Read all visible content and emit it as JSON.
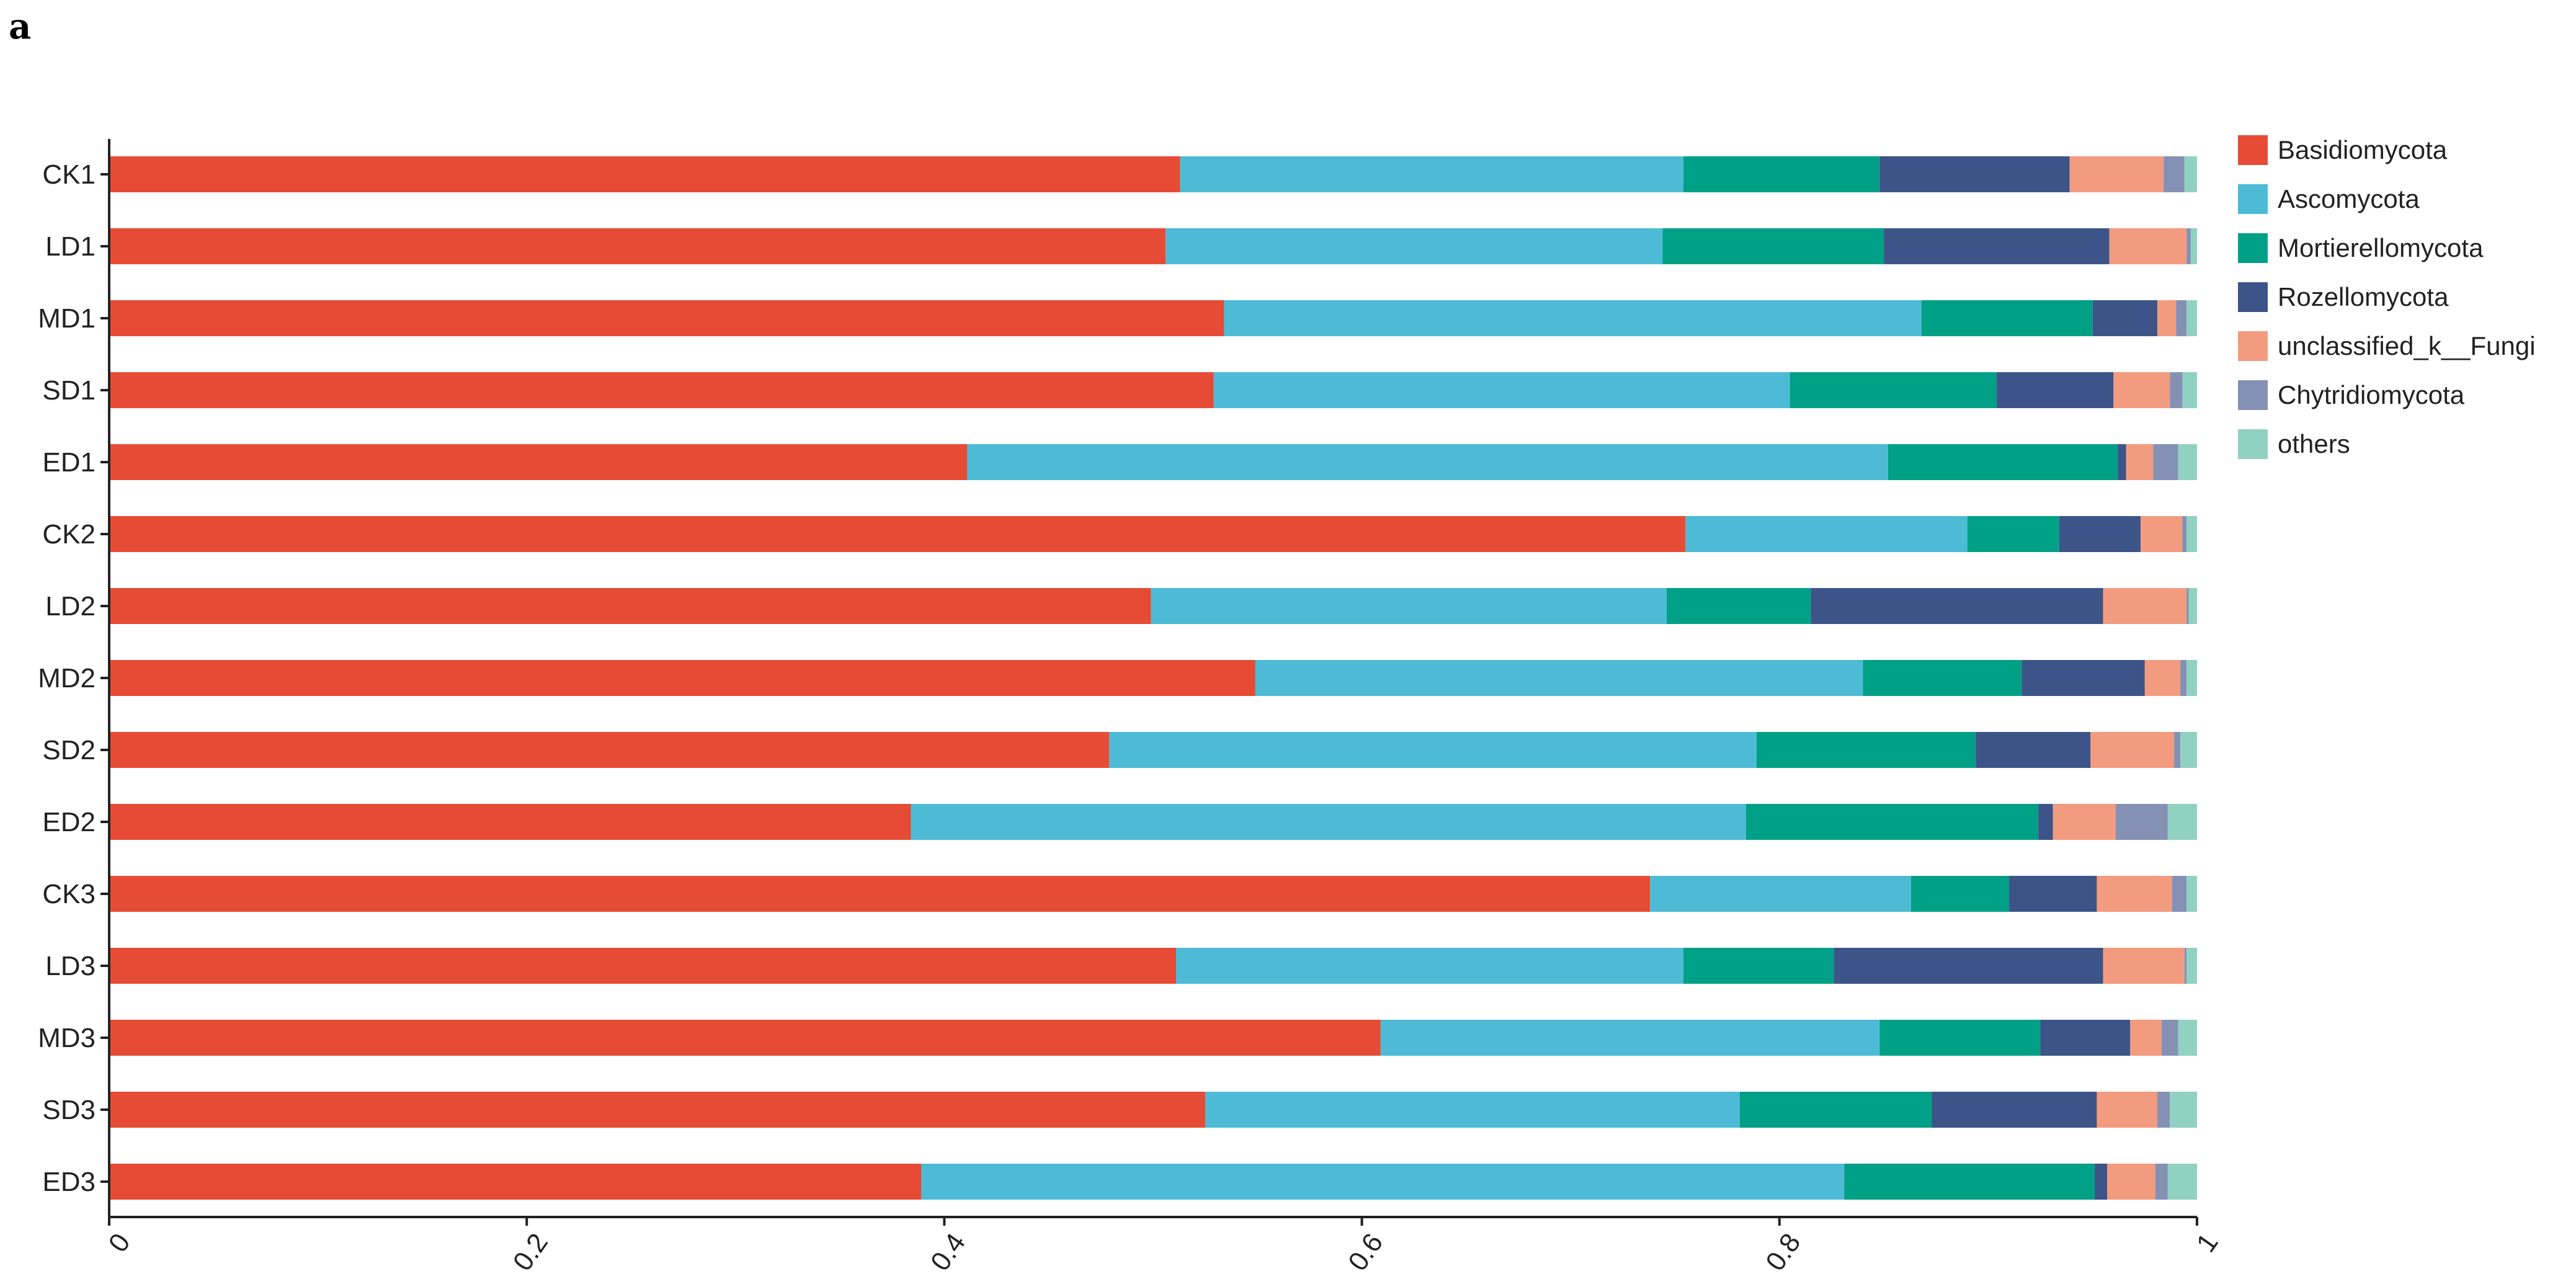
{
  "panel_label": "a",
  "colors": {
    "Basidiomycota": "#e64b35",
    "Ascomycota": "#4dbbd5",
    "Mortierellomycota": "#00a087",
    "Rozellomycota": "#3c5488",
    "unclassified_k__Fungi": "#f39b7f",
    "Chytridiomycota": "#8491b4",
    "others": "#91d1c2"
  },
  "chart_data": {
    "type": "bar",
    "orientation": "horizontal",
    "stacked": true,
    "title": "",
    "xlabel": "",
    "ylabel": "",
    "xlim": [
      0,
      1
    ],
    "xticks": [
      0,
      0.2,
      0.4,
      0.6,
      0.8,
      1
    ],
    "xtick_labels": [
      "0",
      "0.2",
      "0.4",
      "0.6",
      "0.8",
      "1"
    ],
    "legend_position": "top-right",
    "categories": [
      "CK1",
      "LD1",
      "MD1",
      "SD1",
      "ED1",
      "CK2",
      "LD2",
      "MD2",
      "SD2",
      "ED2",
      "CK3",
      "LD3",
      "MD3",
      "SD3",
      "ED3"
    ],
    "series": [
      {
        "name": "Basidiomycota",
        "values": [
          0.513,
          0.506,
          0.534,
          0.529,
          0.411,
          0.755,
          0.499,
          0.549,
          0.479,
          0.384,
          0.738,
          0.511,
          0.609,
          0.525,
          0.389
        ]
      },
      {
        "name": "Ascomycota",
        "values": [
          0.241,
          0.238,
          0.334,
          0.276,
          0.441,
          0.135,
          0.247,
          0.291,
          0.31,
          0.4,
          0.125,
          0.243,
          0.239,
          0.256,
          0.442
        ]
      },
      {
        "name": "Mortierellomycota",
        "values": [
          0.094,
          0.106,
          0.082,
          0.099,
          0.11,
          0.044,
          0.069,
          0.076,
          0.105,
          0.14,
          0.047,
          0.072,
          0.077,
          0.092,
          0.12
        ]
      },
      {
        "name": "Rozellomycota",
        "values": [
          0.091,
          0.108,
          0.031,
          0.056,
          0.004,
          0.039,
          0.14,
          0.059,
          0.055,
          0.007,
          0.042,
          0.129,
          0.043,
          0.079,
          0.006
        ]
      },
      {
        "name": "unclassified_k__Fungi",
        "values": [
          0.045,
          0.037,
          0.009,
          0.027,
          0.013,
          0.02,
          0.04,
          0.017,
          0.04,
          0.03,
          0.036,
          0.039,
          0.015,
          0.029,
          0.023
        ]
      },
      {
        "name": "Chytridiomycota",
        "values": [
          0.01,
          0.002,
          0.005,
          0.006,
          0.012,
          0.002,
          0.001,
          0.003,
          0.003,
          0.025,
          0.007,
          0.001,
          0.008,
          0.006,
          0.006
        ]
      },
      {
        "name": "others",
        "values": [
          0.006,
          0.003,
          0.005,
          0.007,
          0.009,
          0.005,
          0.004,
          0.005,
          0.008,
          0.014,
          0.005,
          0.005,
          0.009,
          0.013,
          0.014
        ]
      }
    ]
  }
}
